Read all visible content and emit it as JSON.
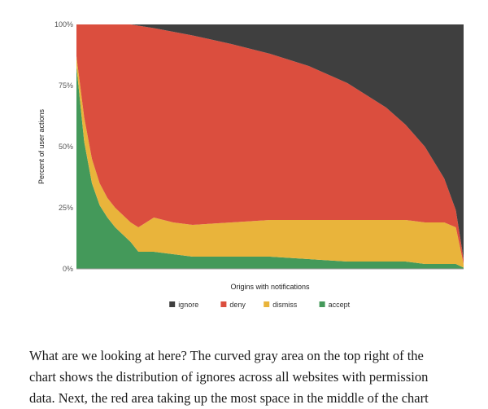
{
  "chart_data": {
    "type": "area",
    "stacked": true,
    "normalized": true,
    "xlabel": "Origins with notifications",
    "ylabel": "Percent of user actions",
    "y_ticks": [
      "0%",
      "25%",
      "50%",
      "75%",
      "100%"
    ],
    "ylim": [
      0,
      100
    ],
    "grid": false,
    "legend_position": "bottom",
    "stack_order_bottom_to_top": [
      "accept",
      "dismiss",
      "deny",
      "ignore"
    ],
    "x": [
      0,
      2,
      4,
      6,
      8,
      10,
      12,
      14,
      16,
      20,
      25,
      30,
      40,
      50,
      60,
      70,
      80,
      85,
      90,
      95,
      98,
      100
    ],
    "series": [
      {
        "name": "ignore",
        "color": "#3f3f3f",
        "values": [
          0,
          0,
          0,
          0,
          0,
          0,
          0,
          0,
          0.5,
          1.5,
          3,
          4.5,
          8,
          12,
          17,
          24,
          34,
          41,
          50,
          63,
          76,
          96
        ]
      },
      {
        "name": "deny",
        "color": "#db4e3e",
        "values": [
          13,
          38,
          55,
          65,
          71,
          75,
          78,
          81,
          82.5,
          77.5,
          78,
          77.5,
          73,
          68,
          63,
          56,
          46,
          39,
          31,
          18,
          7,
          2
        ]
      },
      {
        "name": "dismiss",
        "color": "#e9b43b",
        "values": [
          4,
          10,
          10,
          9,
          8,
          8,
          8,
          8,
          10,
          14,
          13,
          13,
          14,
          15,
          16,
          17,
          17,
          17,
          17,
          17,
          15,
          1.5
        ]
      },
      {
        "name": "accept",
        "color": "#44995a",
        "values": [
          83,
          52,
          35,
          26,
          21,
          17,
          14,
          11,
          7,
          7,
          6,
          5,
          5,
          5,
          4,
          3,
          3,
          3,
          2,
          2,
          2,
          0.5
        ]
      }
    ]
  },
  "article": {
    "line1": "What are we looking at here? The curved gray area on the top right of the",
    "line2": "chart shows the distribution of ignores across all websites with permission",
    "line3": "data. Next, the red area taking up the most space in the middle of the chart"
  }
}
